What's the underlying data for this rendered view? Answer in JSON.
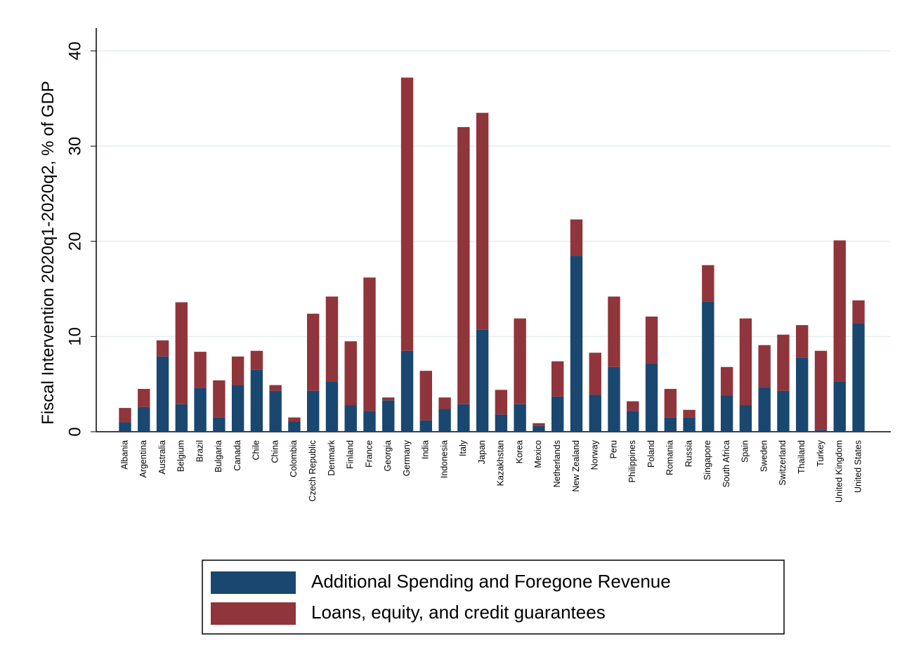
{
  "chart_data": {
    "type": "stacked_bar",
    "y_label": "Fiscal Intervention 2020q1-2020q2, % of GDP",
    "categories": [
      "Albania",
      "Argentina",
      "Australia",
      "Belgium",
      "Brazil",
      "Bulgaria",
      "Canada",
      "Chile",
      "China",
      "Colombia",
      "Czech Republic",
      "Denmark",
      "Finland",
      "France",
      "Georgia",
      "Germany",
      "India",
      "Indonesia",
      "Italy",
      "Japan",
      "Kazakhstan",
      "Korea",
      "Mexico",
      "Netherlands",
      "New Zealand",
      "Norway",
      "Peru",
      "Philippines",
      "Poland",
      "Romania",
      "Russia",
      "Singapore",
      "South Africa",
      "Spain",
      "Sweden",
      "Switzerland",
      "Thailand",
      "Turkey",
      "United Kingdom",
      "United States"
    ],
    "series": [
      {
        "name": "Additional Spending and Foregone Revenue",
        "color": "#1a476f",
        "values": [
          1.0,
          2.6,
          7.9,
          2.9,
          4.6,
          1.5,
          4.9,
          6.5,
          4.3,
          1.1,
          4.3,
          5.3,
          2.8,
          2.2,
          3.3,
          8.5,
          1.2,
          2.4,
          2.9,
          10.7,
          1.8,
          2.9,
          0.6,
          3.7,
          18.5,
          3.9,
          6.8,
          2.2,
          7.2,
          1.5,
          1.5,
          13.7,
          3.8,
          2.8,
          4.7,
          4.3,
          7.8,
          0.2,
          5.3,
          11.4
        ]
      },
      {
        "name": "Loans, equity, and credit guarantees",
        "color": "#90353b",
        "values": [
          1.5,
          1.9,
          1.7,
          10.7,
          3.8,
          3.9,
          3.0,
          2.0,
          0.6,
          0.4,
          8.1,
          8.9,
          6.7,
          14.0,
          0.3,
          28.7,
          5.2,
          1.2,
          29.1,
          22.8,
          2.6,
          9.0,
          0.3,
          3.7,
          3.8,
          4.4,
          7.4,
          1.0,
          4.9,
          3.0,
          0.8,
          3.8,
          3.0,
          9.1,
          4.4,
          5.9,
          3.4,
          8.3,
          14.8,
          2.4
        ]
      }
    ],
    "ylim": [
      0,
      42.4
    ],
    "yticks": [
      0,
      10,
      20,
      30,
      40
    ],
    "grid": true
  }
}
